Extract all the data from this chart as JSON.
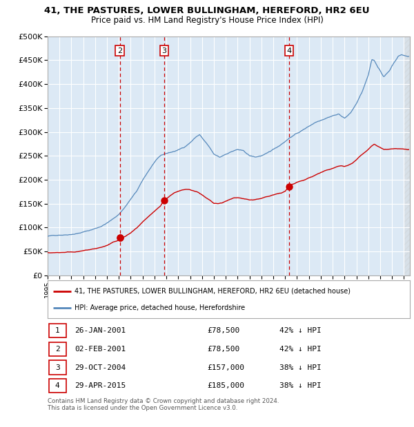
{
  "title1": "41, THE PASTURES, LOWER BULLINGHAM, HEREFORD, HR2 6EU",
  "title2": "Price paid vs. HM Land Registry's House Price Index (HPI)",
  "background_color": "#ffffff",
  "plot_bg_color": "#dce9f5",
  "grid_color": "#ffffff",
  "ylim": [
    0,
    500000
  ],
  "yticks": [
    0,
    50000,
    100000,
    150000,
    200000,
    250000,
    300000,
    350000,
    400000,
    450000,
    500000
  ],
  "ytick_labels": [
    "£0",
    "£50K",
    "£100K",
    "£150K",
    "£200K",
    "£250K",
    "£300K",
    "£350K",
    "£400K",
    "£450K",
    "£500K"
  ],
  "sale_prices": [
    78500,
    78500,
    157000,
    185000
  ],
  "sale_color": "#cc0000",
  "hpi_color": "#5588bb",
  "vline_color": "#cc0000",
  "legend_sale": "41, THE PASTURES, LOWER BULLINGHAM, HEREFORD, HR2 6EU (detached house)",
  "legend_hpi": "HPI: Average price, detached house, Herefordshire",
  "table_rows": [
    [
      "1",
      "26-JAN-2001",
      "£78,500",
      "42% ↓ HPI"
    ],
    [
      "2",
      "02-FEB-2001",
      "£78,500",
      "42% ↓ HPI"
    ],
    [
      "3",
      "29-OCT-2004",
      "£157,000",
      "38% ↓ HPI"
    ],
    [
      "4",
      "29-APR-2015",
      "£185,000",
      "38% ↓ HPI"
    ]
  ],
  "footer": "Contains HM Land Registry data © Crown copyright and database right 2024.\nThis data is licensed under the Open Government Licence v3.0.",
  "xlim_start": 1995.0,
  "xlim_end": 2025.5
}
